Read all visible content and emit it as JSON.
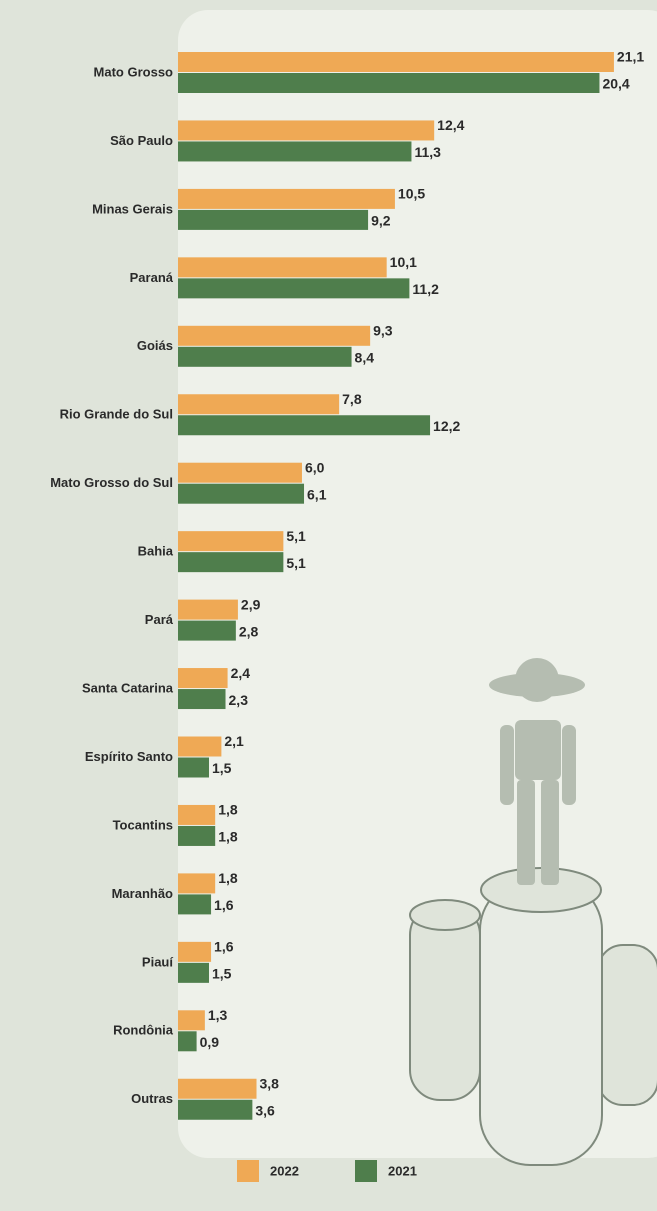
{
  "chart_data": {
    "type": "bar",
    "orientation": "horizontal",
    "categories": [
      "Mato Grosso",
      "São Paulo",
      "Minas Gerais",
      "Paraná",
      "Goiás",
      "Rio Grande do Sul",
      "Mato Grosso do Sul",
      "Bahia",
      "Pará",
      "Santa Catarina",
      "Espírito Santo",
      "Tocantins",
      "Maranhão",
      "Piauí",
      "Rondônia",
      "Outras"
    ],
    "series": [
      {
        "name": "2022",
        "color": "#efa955",
        "values": [
          21.1,
          12.4,
          10.5,
          10.1,
          9.3,
          7.8,
          6.0,
          5.1,
          2.9,
          2.4,
          2.1,
          1.8,
          1.8,
          1.6,
          1.3,
          3.8
        ],
        "value_labels": [
          "21,1",
          "12,4",
          "10,5",
          "10,1",
          "9,3",
          "7,8",
          "6,0",
          "5,1",
          "2,9",
          "2,4",
          "2,1",
          "1,8",
          "1,8",
          "1,6",
          "1,3",
          "3,8"
        ]
      },
      {
        "name": "2021",
        "color": "#4f7e4c",
        "values": [
          20.4,
          11.3,
          9.2,
          11.2,
          8.4,
          12.2,
          6.1,
          5.1,
          2.8,
          2.3,
          1.5,
          1.8,
          1.6,
          1.5,
          0.9,
          3.6
        ],
        "value_labels": [
          "20,4",
          "11,3",
          "9,2",
          "11,2",
          "8,4",
          "12,2",
          "6,1",
          "5,1",
          "2,8",
          "2,3",
          "1,5",
          "1,8",
          "1,6",
          "1,5",
          "0,9",
          "3,6"
        ]
      }
    ]
  }
}
